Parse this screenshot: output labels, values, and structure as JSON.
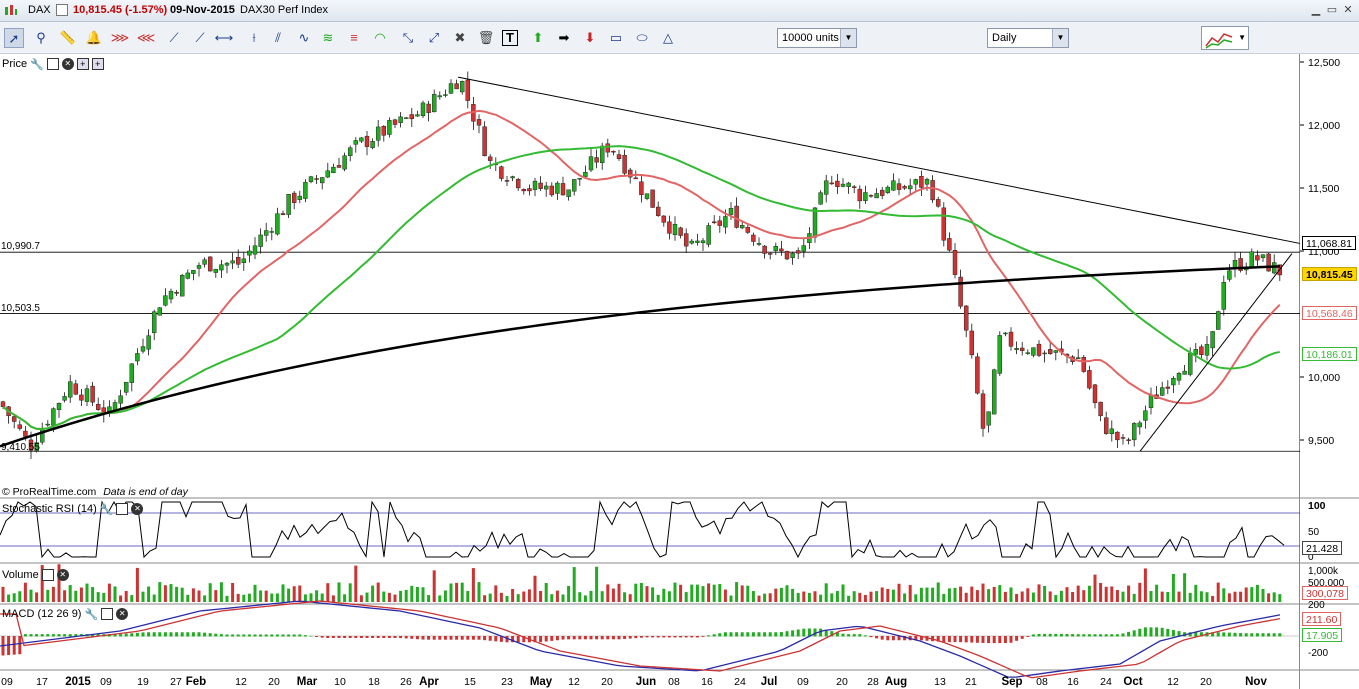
{
  "window": {
    "symbol": "DAX",
    "quote": "10,815.45 (-1.57%)",
    "date": "09-Nov-2015",
    "instrument": "DAX30 Perf Index"
  },
  "toolbar": {
    "units_select": "10000 units",
    "period_select": "Daily",
    "icons": [
      "pointer-icon",
      "zoom-icon",
      "ruler-icon",
      "alarm-icon",
      "fan-icon",
      "fan-icon",
      "trendline-icon",
      "trendline-icon",
      "ray-icon",
      "vline-icon",
      "channel-icon",
      "wave-icon",
      "fibonacci-icon",
      "arc-icon",
      "arrow-icon",
      "arrow-icon",
      "tools-icon",
      "trash-icon",
      "text-icon",
      "up-arrow-icon",
      "right-arrow-icon",
      "down-arrow-icon",
      "rectangle-icon",
      "ellipse-icon",
      "triangle-icon"
    ]
  },
  "price_panel": {
    "label": "Price",
    "credit": "© ProRealTime.com",
    "note": "Data is end of day",
    "levels": [
      {
        "label": "10,990.7",
        "value": 10990.7
      },
      {
        "label": "10,503.5",
        "value": 10503.5
      },
      {
        "label": "9,410.55",
        "value": 9410.55
      }
    ],
    "tags": [
      {
        "text": "11,068.81",
        "value": 11068.81,
        "color": "#ffffff",
        "border": "#000000",
        "fg": "#000000"
      },
      {
        "text": "10,815.45",
        "value": 10815.45,
        "color": "#ffd400",
        "border": "#c8a400",
        "fg": "#000000"
      },
      {
        "text": "10,568.46",
        "value": 10568.46,
        "color": "#ffffff",
        "border": "#e06666",
        "fg": "#e06666"
      },
      {
        "text": "10,186.01",
        "value": 10186.01,
        "color": "#ffffff",
        "border": "#33bb33",
        "fg": "#33bb33"
      }
    ]
  },
  "rsi_panel": {
    "label": "Stochastic RSI (14)",
    "ticks": [
      "100",
      "50",
      "0"
    ],
    "tag": "21.428"
  },
  "volume_panel": {
    "label": "Volume",
    "ticks": [
      "1,000k",
      "500,000"
    ],
    "tag": "300,078"
  },
  "macd_panel": {
    "label": "MACD (12 26 9)",
    "ticks": [
      "200",
      "-200"
    ],
    "tags": [
      "211.60",
      "17.905"
    ]
  },
  "x_axis": [
    "09",
    "17",
    "2015",
    "09",
    "19",
    "27",
    "Feb",
    "12",
    "20",
    "Mar",
    "10",
    "18",
    "26",
    "Apr",
    "15",
    "23",
    "May",
    "12",
    "20",
    "Jun",
    "08",
    "16",
    "24",
    "Jul",
    "09",
    "20",
    "28",
    "Aug",
    "13",
    "21",
    "Sep",
    "08",
    "16",
    "24",
    "Oct",
    "12",
    "20",
    "Nov"
  ],
  "colors": {
    "up": "#22aa22",
    "down": "#cc3333",
    "ma_fast": "#e06666",
    "ma_mid": "#33bb33",
    "ma_slow": "#000000"
  },
  "chart_data": {
    "type": "candlestick",
    "title": "DAX30 Perf Index",
    "period": "Daily",
    "y_axis_ticks": [
      12500,
      12000,
      11500,
      11000,
      10000,
      9500
    ],
    "ylim": [
      9200,
      12550
    ],
    "series": [
      {
        "name": "DAX",
        "type": "candlestick",
        "approx_close_path": [
          [
            0,
            9800
          ],
          [
            30,
            9450
          ],
          [
            70,
            9950
          ],
          [
            110,
            9700
          ],
          [
            160,
            10600
          ],
          [
            200,
            10900
          ],
          [
            240,
            10900
          ],
          [
            290,
            11400
          ],
          [
            360,
            11850
          ],
          [
            420,
            12100
          ],
          [
            460,
            12380
          ],
          [
            490,
            11700
          ],
          [
            530,
            11500
          ],
          [
            570,
            11500
          ],
          [
            610,
            11850
          ],
          [
            650,
            11400
          ],
          [
            690,
            11000
          ],
          [
            730,
            11300
          ],
          [
            770,
            11000
          ],
          [
            800,
            10950
          ],
          [
            830,
            11600
          ],
          [
            860,
            11450
          ],
          [
            900,
            11500
          ],
          [
            930,
            11550
          ],
          [
            950,
            10950
          ],
          [
            970,
            10200
          ],
          [
            985,
            9500
          ],
          [
            1000,
            10300
          ],
          [
            1040,
            10200
          ],
          [
            1080,
            10150
          ],
          [
            1100,
            9650
          ],
          [
            1125,
            9450
          ],
          [
            1150,
            9800
          ],
          [
            1180,
            10100
          ],
          [
            1210,
            10200
          ],
          [
            1225,
            10850
          ],
          [
            1255,
            10950
          ],
          [
            1285,
            10815
          ]
        ]
      },
      {
        "name": "MA fast",
        "last": 10568.46
      },
      {
        "name": "MA mid",
        "last": 10186.01
      },
      {
        "name": "MA slow",
        "last": 11068.81
      }
    ],
    "rsi_last": 21.428,
    "volume_last": 300078,
    "macd_last": [
      211.6,
      17.905
    ]
  }
}
